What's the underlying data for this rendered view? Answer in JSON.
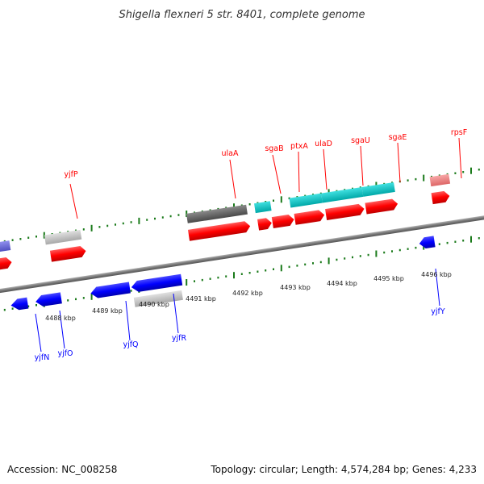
{
  "title": "Shigella flexneri 5 str. 8401, complete genome",
  "footer": {
    "accession": "Accession: NC_008258",
    "summary": "Topology: circular; Length: 4,574,284 bp; Genes: 4,233"
  },
  "ruler": {
    "labels": [
      "4488 kbp",
      "4489 kbp",
      "4490 kbp",
      "4491 kbp",
      "4492 kbp",
      "4493 kbp",
      "4494 kbp",
      "4495 kbp",
      "4496 kbp"
    ]
  },
  "colors": {
    "forward_gene": "#ff0000",
    "reverse_gene": "#0000ff",
    "teal_feature": "#00bcbc",
    "dark_feature": "#606060",
    "light_feature": "#c0c0c0",
    "pink_feature": "#ee8080",
    "purple_feature": "#7070dd",
    "tick": "#1a7a1a",
    "backbone": "#888888"
  },
  "gene_labels": {
    "top": [
      "yjfP",
      "ulaA",
      "sgaB",
      "ptxA",
      "ulaD",
      "sgaU",
      "sgaE",
      "rpsF"
    ],
    "bottom": [
      "yjfN",
      "yjfO",
      "yjfQ",
      "yjfR",
      "yjfY"
    ]
  }
}
